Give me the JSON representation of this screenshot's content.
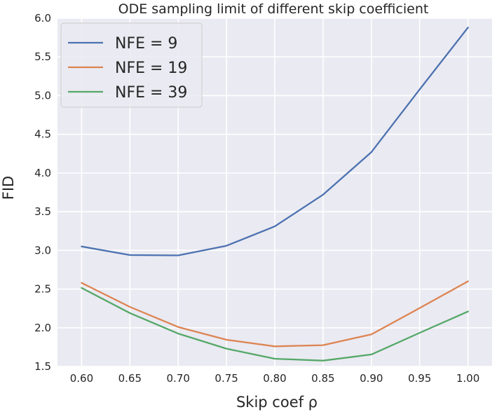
{
  "chart_data": {
    "type": "line",
    "title": "ODE sampling limit of different skip coefficient",
    "xlabel": "Skip coef ρ",
    "ylabel": "FID",
    "xlim": [
      0.575,
      1.025
    ],
    "ylim": [
      1.5,
      6.0
    ],
    "x": [
      0.6,
      0.65,
      0.7,
      0.75,
      0.8,
      0.85,
      0.9,
      0.95,
      1.0
    ],
    "xticks": [
      "0.60",
      "0.65",
      "0.70",
      "0.75",
      "0.80",
      "0.85",
      "0.90",
      "0.95",
      "1.00"
    ],
    "yticks": [
      "1.5",
      "2.0",
      "2.5",
      "3.0",
      "3.5",
      "4.0",
      "4.5",
      "5.0",
      "5.5",
      "6.0"
    ],
    "grid": true,
    "legend_position": "top-left",
    "series": [
      {
        "name": "NFE = 9",
        "color": "#4c72b0",
        "values": [
          3.05,
          2.94,
          2.935,
          3.06,
          3.31,
          3.72,
          4.27,
          5.08,
          5.88
        ]
      },
      {
        "name": "NFE = 19",
        "color": "#dd8452",
        "values": [
          2.58,
          2.27,
          2.01,
          1.845,
          1.76,
          1.775,
          1.915,
          2.255,
          2.6
        ]
      },
      {
        "name": "NFE = 39",
        "color": "#55a868",
        "values": [
          2.515,
          2.19,
          1.925,
          1.73,
          1.6,
          1.575,
          1.655,
          1.935,
          2.21
        ]
      }
    ]
  }
}
